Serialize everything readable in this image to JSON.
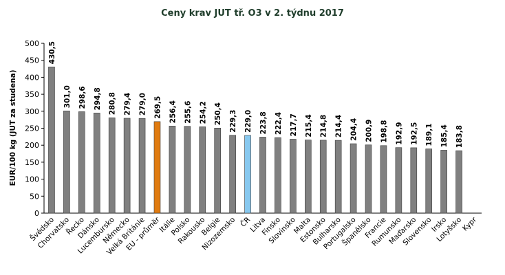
{
  "chart_data": {
    "type": "bar",
    "title": "Ceny krav JUT  tř. O3  v 2. týdnu 2017",
    "ylabel": "EUR/100 kg (JUT za studena)",
    "xlabel": "",
    "ylim": [
      0,
      500
    ],
    "ytick_step": 50,
    "grid": false,
    "legend": "none",
    "categories": [
      "Švédsko",
      "Chorvatsko",
      "Řecko",
      "Dánsko",
      "Lucembursko",
      "Německo",
      "Velká Británie",
      "EU - průměr",
      "Itálie",
      "Polsko",
      "Rakousko",
      "Belgie",
      "Nizozemsko",
      "ČR",
      "Litva",
      "Finsko",
      "Slovinsko",
      "Malta",
      "Estonsko",
      "Bulharsko",
      "Portugalsko",
      "Španělsko",
      "Francie",
      "Rumunsko",
      "Maďarsko",
      "Slovensko",
      "Irsko",
      "Lotyšsko",
      "Kypr"
    ],
    "values": [
      430.5,
      301.0,
      298.6,
      294.8,
      280.8,
      279.4,
      279.0,
      269.5,
      256.4,
      255.6,
      254.2,
      250.4,
      229.3,
      229.0,
      223.8,
      222.4,
      217.7,
      215.4,
      214.8,
      214.4,
      204.4,
      200.9,
      198.8,
      192.9,
      192.5,
      189.1,
      185.4,
      183.8,
      null
    ],
    "value_labels": [
      "430,5",
      "301,0",
      "298,6",
      "294,8",
      "280,8",
      "279,4",
      "279,0",
      "269,5",
      "256,4",
      "255,6",
      "254,2",
      "250,4",
      "229,3",
      "229,0",
      "223,8",
      "222,4",
      "217,7",
      "215,4",
      "214,8",
      "214,4",
      "204,4",
      "200,9",
      "198,8",
      "192,9",
      "192,5",
      "189,1",
      "185,4",
      "183,8",
      ""
    ],
    "colors": {
      "default": "#808080",
      "EU - průměr": "#e07b10",
      "ČR": "#87c8ef"
    }
  }
}
